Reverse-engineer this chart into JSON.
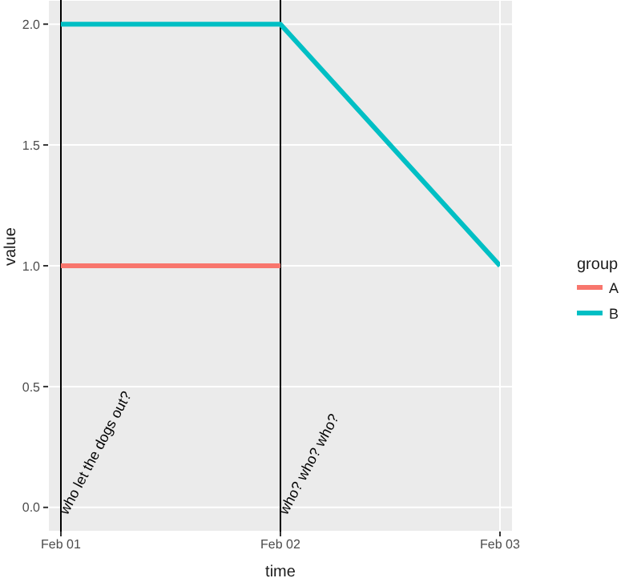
{
  "chart_data": {
    "type": "line",
    "xlabel": "time",
    "ylabel": "value",
    "legend_title": "group",
    "x": [
      "--02-01",
      "--02-02",
      "--02-03"
    ],
    "series": [
      {
        "name": "A",
        "color": "#f8766d",
        "values": [
          1,
          1,
          null
        ]
      },
      {
        "name": "B",
        "color": "#00bfc4",
        "values": [
          2,
          2,
          1
        ]
      }
    ],
    "xlim": [
      "--02-01",
      "--02-03"
    ],
    "xticks": [
      {
        "value": "--02-01",
        "label": "Feb 01"
      },
      {
        "value": "--02-02",
        "label": "Feb 02"
      },
      {
        "value": "--02-03",
        "label": "Feb 03"
      }
    ],
    "ylim": [
      -0.1,
      2.1
    ],
    "yticks": [
      {
        "value": 0,
        "label": "0.0"
      },
      {
        "value": 0.5,
        "label": "0.5"
      },
      {
        "value": 1,
        "label": "1.0"
      },
      {
        "value": 1.5,
        "label": "1.5"
      },
      {
        "value": 2,
        "label": "2.0"
      }
    ],
    "ref_lines": [
      {
        "axis": "x",
        "value": "--02-01",
        "label": "who let the dogs out?",
        "color": "#000000"
      },
      {
        "axis": "x",
        "value": "--02-02",
        "label": "who? who? who?",
        "color": "#000000"
      }
    ],
    "grid": true,
    "legend": "right"
  }
}
